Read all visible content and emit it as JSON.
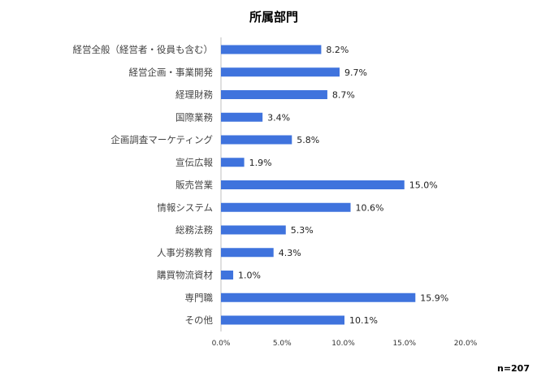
{
  "chart_data": {
    "type": "bar",
    "orientation": "horizontal",
    "title": "所属部門",
    "categories": [
      "経営全般（経営者・役員も含む）",
      "経営企画・事業開発",
      "経理財務",
      "国際業務",
      "企画調査マーケティング",
      "宣伝広報",
      "販売営業",
      "情報システム",
      "総務法務",
      "人事労務教育",
      "購買物流資材",
      "専門職",
      "その他"
    ],
    "values": [
      8.2,
      9.7,
      8.7,
      3.4,
      5.8,
      1.9,
      15.0,
      10.6,
      5.3,
      4.3,
      1.0,
      15.9,
      10.1
    ],
    "value_labels": [
      "8.2%",
      "9.7%",
      "8.7%",
      "3.4%",
      "5.8%",
      "1.9%",
      "15.0%",
      "10.6%",
      "5.3%",
      "4.3%",
      "1.0%",
      "15.9%",
      "10.1%"
    ],
    "x_ticks": [
      "0.0%",
      "5.0%",
      "10.0%",
      "15.0%",
      "20.0%"
    ],
    "x_tick_values": [
      0,
      5,
      10,
      15,
      20
    ],
    "xlim": [
      0,
      20
    ],
    "xlabel": "",
    "ylabel": "",
    "grid": false,
    "legend": "none",
    "bar_color": "#3f73dd",
    "sample_note": "n=207"
  }
}
